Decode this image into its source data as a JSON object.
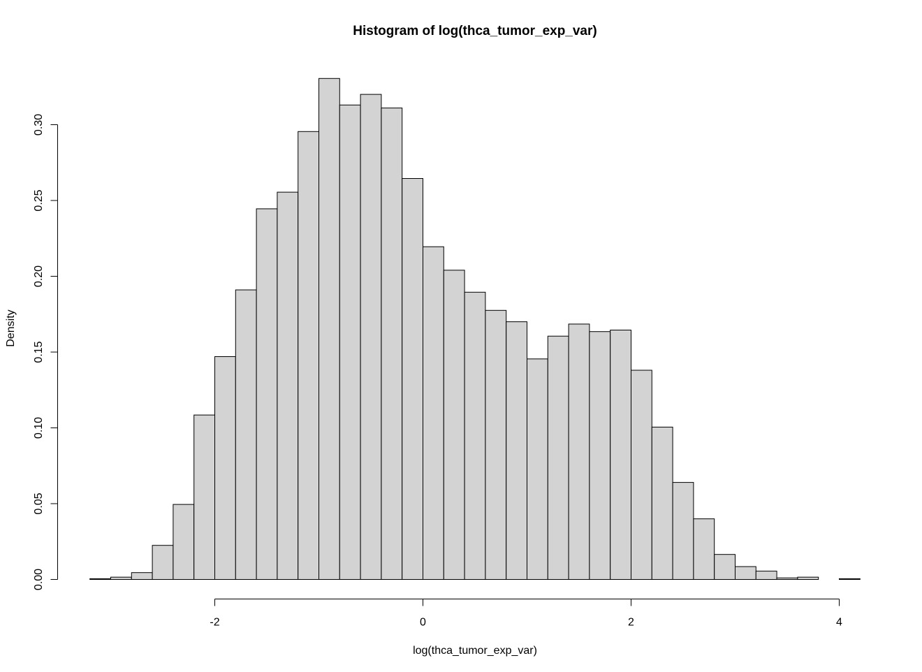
{
  "chart_data": {
    "type": "bar",
    "title": "Histogram of log(thca_tumor_exp_var)",
    "xlabel": "log(thca_tumor_exp_var)",
    "ylabel": "Density",
    "xlim": [
      -3.2,
      4.2
    ],
    "ylim": [
      0,
      0.33
    ],
    "bin_width": 0.2,
    "bin_start": -3.2,
    "values": [
      0.0005,
      0.0015,
      0.0045,
      0.0225,
      0.0495,
      0.1085,
      0.147,
      0.191,
      0.2445,
      0.2555,
      0.2955,
      0.3305,
      0.313,
      0.32,
      0.311,
      0.2645,
      0.2195,
      0.204,
      0.1895,
      0.1775,
      0.17,
      0.1455,
      0.1605,
      0.1685,
      0.1635,
      0.1645,
      0.138,
      0.1005,
      0.064,
      0.04,
      0.0165,
      0.0085,
      0.0055,
      0.001,
      0.0015,
      0.0,
      0.0005
    ],
    "x_ticks": [
      "-2",
      "0",
      "2",
      "4"
    ],
    "x_tick_values": [
      -2,
      0,
      2,
      4
    ],
    "y_ticks": [
      "0.00",
      "0.05",
      "0.10",
      "0.15",
      "0.20",
      "0.25",
      "0.30"
    ],
    "y_tick_values": [
      0,
      0.05,
      0.1,
      0.15,
      0.2,
      0.25,
      0.3
    ],
    "bar_fill": "#d3d3d3",
    "bar_stroke": "#000000",
    "grid": false,
    "legend": "none"
  }
}
